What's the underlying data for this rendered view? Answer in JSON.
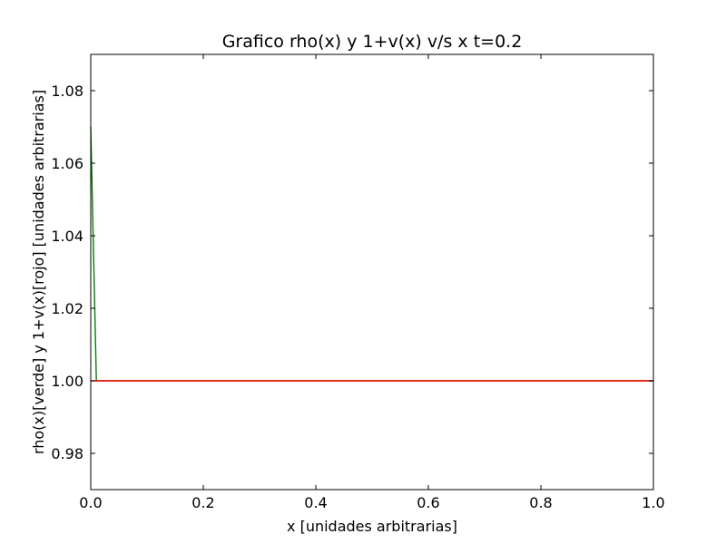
{
  "chart_data": {
    "type": "line",
    "title": "Grafico rho(x) y 1+v(x) v/s x t=0.2",
    "xlabel": "x [unidades arbitrarias]",
    "ylabel": "rho(x)[verde] y 1+v(x)[rojo] [unidades arbitrarias]",
    "xlim": [
      0.0,
      1.0
    ],
    "ylim": [
      0.97,
      1.09
    ],
    "x_ticks": [
      "0.0",
      "0.2",
      "0.4",
      "0.6",
      "0.8",
      "1.0"
    ],
    "x_tick_values": [
      0.0,
      0.2,
      0.4,
      0.6,
      0.8,
      1.0
    ],
    "y_ticks": [
      "0.98",
      "1.00",
      "1.02",
      "1.04",
      "1.06",
      "1.08"
    ],
    "y_tick_values": [
      0.98,
      1.0,
      1.02,
      1.04,
      1.06,
      1.08
    ],
    "grid": false,
    "series": [
      {
        "color": "#008000",
        "points": [
          [
            0.0,
            1.07
          ],
          [
            0.01,
            1.0
          ],
          [
            1.0,
            1.0
          ]
        ]
      },
      {
        "color": "#ff0000",
        "points": [
          [
            0.0,
            1.0
          ],
          [
            1.0,
            1.0
          ]
        ]
      }
    ]
  }
}
